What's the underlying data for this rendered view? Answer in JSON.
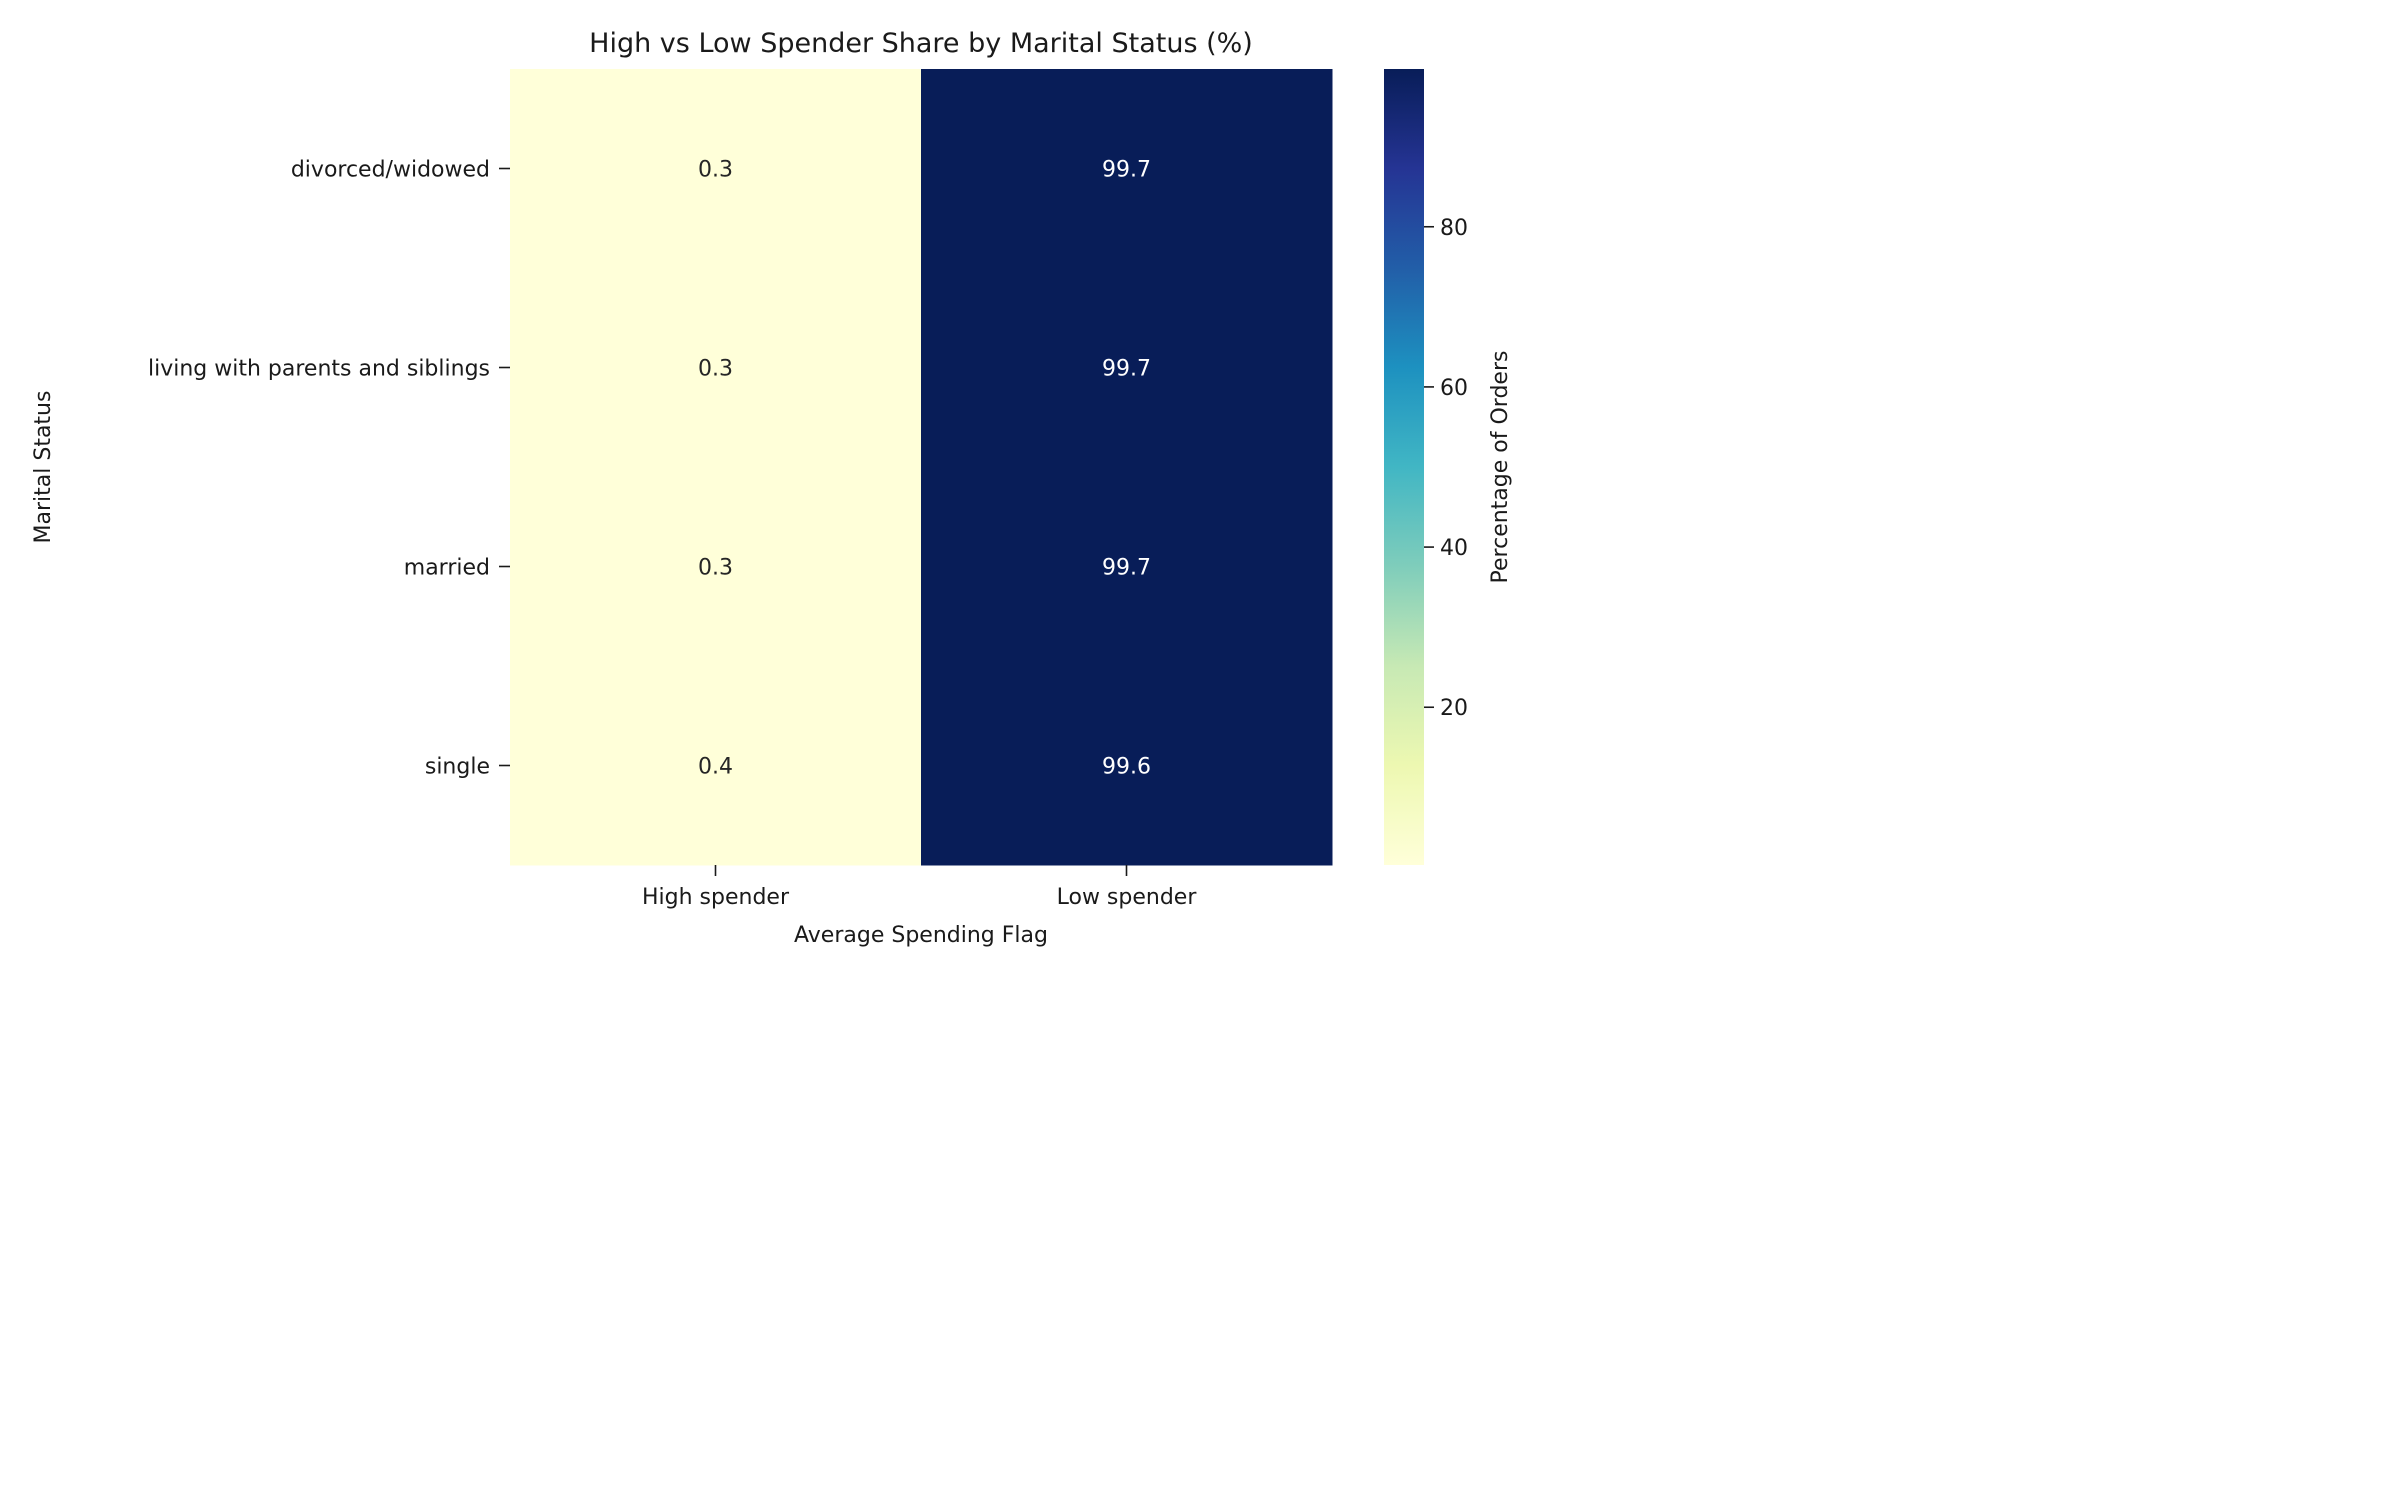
{
  "chart_data": {
    "type": "heatmap",
    "title": "High vs Low Spender Share by Marital Status (%)",
    "xlabel": "Average Spending Flag",
    "ylabel": "Marital Status",
    "x_categories": [
      "High spender",
      "Low spender"
    ],
    "y_categories": [
      "divorced/widowed",
      "living with parents and siblings",
      "married",
      "single"
    ],
    "values": [
      [
        0.3,
        99.7
      ],
      [
        0.3,
        99.7
      ],
      [
        0.3,
        99.7
      ],
      [
        0.4,
        99.6
      ]
    ],
    "colorbar": {
      "label": "Percentage of Orders",
      "range": [
        0.3,
        99.7
      ],
      "ticks": [
        20,
        40,
        60,
        80
      ],
      "colormap": "YlGnBu",
      "stops": [
        "#ffffd9",
        "#edf8b1",
        "#c7e9b4",
        "#7fcdbb",
        "#41b6c4",
        "#1d91c0",
        "#225ea8",
        "#253494",
        "#081d58"
      ]
    },
    "annotation_colors": {
      "light_cell_text": "#262626",
      "dark_cell_text": "#ffffff"
    }
  }
}
